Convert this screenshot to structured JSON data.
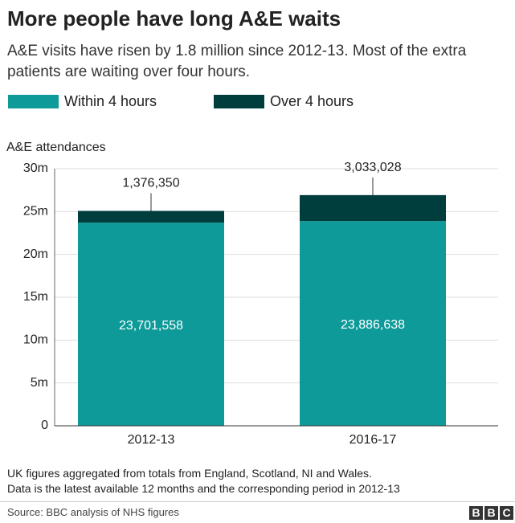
{
  "title": "More people have long A&E waits",
  "subtitle": "A&E visits have risen by 1.8 million since 2012-13. Most of the extra patients are waiting over four hours.",
  "chart_data": {
    "type": "bar",
    "stacked": true,
    "y_label": "A&E attendances",
    "categories": [
      "2012-13",
      "2016-17"
    ],
    "series": [
      {
        "name": "Within 4 hours",
        "color": "#0e9a99",
        "values": [
          23701558,
          23886638
        ],
        "value_labels": [
          "23,701,558",
          "23,886,638"
        ]
      },
      {
        "name": "Over 4 hours",
        "color": "#003e3e",
        "values": [
          1376350,
          3033028
        ],
        "value_labels": [
          "1,376,350",
          "3,033,028"
        ]
      }
    ],
    "ylim": [
      0,
      30000000
    ],
    "yticks": [
      {
        "value": 0,
        "label": "0"
      },
      {
        "value": 5000000,
        "label": "5m"
      },
      {
        "value": 10000000,
        "label": "10m"
      },
      {
        "value": 15000000,
        "label": "15m"
      },
      {
        "value": 20000000,
        "label": "20m"
      },
      {
        "value": 25000000,
        "label": "25m"
      },
      {
        "value": 30000000,
        "label": "30m"
      }
    ],
    "grid": true
  },
  "notes": [
    "UK figures aggregated from totals from England, Scotland, NI and Wales.",
    "Data is the latest available 12 months and the corresponding period in 2012-13"
  ],
  "source": "Source: BBC analysis of NHS figures",
  "logo": [
    "B",
    "B",
    "C"
  ]
}
